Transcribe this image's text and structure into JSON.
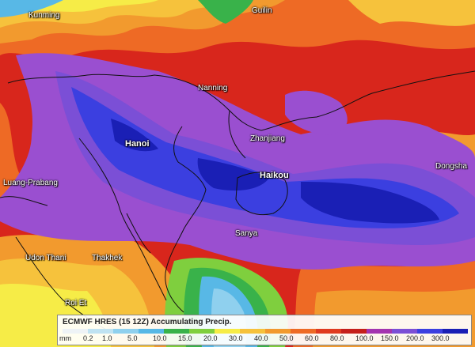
{
  "map": {
    "cities": [
      {
        "name": "Kunming",
        "size": "small"
      },
      {
        "name": "Guilin",
        "size": "small"
      },
      {
        "name": "Nanning",
        "size": "small"
      },
      {
        "name": "Hanoi",
        "size": "big"
      },
      {
        "name": "Zhanjiang",
        "size": "small"
      },
      {
        "name": "Haikou",
        "size": "big"
      },
      {
        "name": "Luang-Prabang",
        "size": "small"
      },
      {
        "name": "Sanya",
        "size": "small"
      },
      {
        "name": "Udon Thani",
        "size": "small"
      },
      {
        "name": "Thakhek",
        "size": "small"
      },
      {
        "name": "Roi Et",
        "size": "small"
      },
      {
        "name": "Dongsha",
        "size": "small"
      }
    ]
  },
  "legend": {
    "title": "ECMWF HRES (15 12Z) Accumulating Precip.",
    "unit": "mm",
    "ticks": [
      "0.2",
      "1.0",
      "5.0",
      "10.0",
      "15.0",
      "20.0",
      "30.0",
      "40.0",
      "50.0",
      "60.0",
      "80.0",
      "100.0",
      "150.0",
      "200.0",
      "300.0"
    ],
    "colors": [
      "#eef3f6",
      "#bfe3f2",
      "#8fd0ee",
      "#58b8e6",
      "#39b24a",
      "#7fcf3e",
      "#f6ec47",
      "#f6c23c",
      "#f29a2e",
      "#ee6a25",
      "#e03a1f",
      "#c51f1a",
      "#a334b0",
      "#7b4fd6",
      "#3b3fe0",
      "#1a1fb5"
    ]
  },
  "colors": {
    "background": "#d8261c",
    "heavy_rain": "#3d40e2",
    "very_heavy_rain": "#1a1fb5",
    "purple_band": "#9a4fd0"
  }
}
